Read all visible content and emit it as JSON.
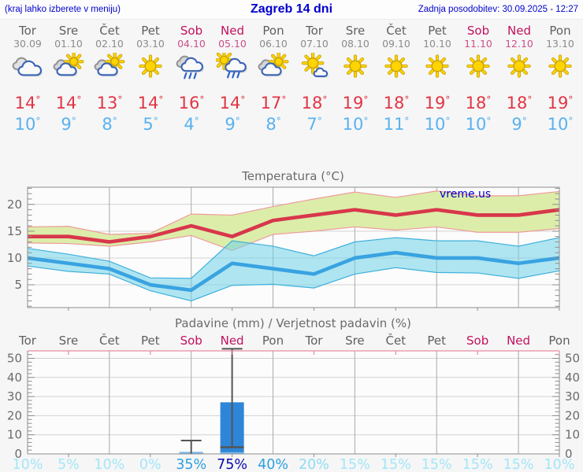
{
  "header": {
    "left_note": "(kraj lahko izberete v meniju)",
    "title": "Zagreb 14 dni",
    "last_update": "Zadnja posodobitev: 30.09.2025 - 12:27"
  },
  "degree_symbol": "°",
  "watermark": "vreme.us",
  "colors": {
    "header_blue": "#0000cc",
    "weekday_text": "#5f5f5f",
    "weekend_text": "#c2105e",
    "tmax_red": "#e13545",
    "tmin_blue": "#58b2f0",
    "plot_bg": "#fcfcfc",
    "grid_h": "#d2d2d2",
    "grid_v": "#a9a9a9",
    "border": "#8d8d8d",
    "precip_top_border": "#e88ba0",
    "axis_text": "#6b6b6b",
    "bar_blue": "#2e86d8",
    "bar_base_highlight": "#7db9ec",
    "whisker_grey": "#555555",
    "watermark_blue": "#0000cc"
  },
  "days": [
    {
      "name": "Tor",
      "date": "30.09",
      "icon": "cloudy-icon",
      "weekend": false
    },
    {
      "name": "Sre",
      "date": "01.10",
      "icon": "partly-cloudy-icon",
      "weekend": false
    },
    {
      "name": "Čet",
      "date": "02.10",
      "icon": "partly-cloudy-icon",
      "weekend": false
    },
    {
      "name": "Pet",
      "date": "03.10",
      "icon": "sunny-icon",
      "weekend": false
    },
    {
      "name": "Sob",
      "date": "04.10",
      "icon": "rain-icon",
      "weekend": true
    },
    {
      "name": "Ned",
      "date": "05.10",
      "icon": "sun-rain-icon",
      "weekend": true
    },
    {
      "name": "Pon",
      "date": "06.10",
      "icon": "partly-cloudy-icon",
      "weekend": false
    },
    {
      "name": "Tor",
      "date": "07.10",
      "icon": "mostly-sunny-icon",
      "weekend": false
    },
    {
      "name": "Sre",
      "date": "08.10",
      "icon": "sunny-icon",
      "weekend": false
    },
    {
      "name": "Čet",
      "date": "09.10",
      "icon": "sunny-icon",
      "weekend": false
    },
    {
      "name": "Pet",
      "date": "10.10",
      "icon": "sunny-icon",
      "weekend": false
    },
    {
      "name": "Sob",
      "date": "11.10",
      "icon": "sunny-icon",
      "weekend": true
    },
    {
      "name": "Ned",
      "date": "12.10",
      "icon": "sunny-icon",
      "weekend": true
    },
    {
      "name": "Pon",
      "date": "13.10",
      "icon": "sunny-icon",
      "weekend": false
    }
  ],
  "chart_data": [
    {
      "type": "line",
      "title": "Temperatura (°C)",
      "x": [
        "Tor",
        "Sre",
        "Čet",
        "Pet",
        "Sob",
        "Ned",
        "Pon",
        "Tor",
        "Sre",
        "Čet",
        "Pet",
        "Sob",
        "Ned",
        "Pon"
      ],
      "ylim": [
        0.75,
        23.2
      ],
      "yticks": [
        5,
        10,
        15,
        20
      ],
      "grid": true,
      "legend": "none",
      "series": [
        {
          "name": "max-temperature",
          "color": "#d8374b",
          "values": [
            14,
            14,
            13,
            14,
            16,
            14,
            17,
            18,
            19,
            18,
            19,
            18,
            18,
            19
          ],
          "band_upper": [
            15.8,
            15.9,
            14.4,
            14.6,
            18.2,
            18.0,
            19.6,
            21.0,
            22.3,
            21.3,
            22.5,
            21.6,
            21.6,
            22.4
          ],
          "band_lower": [
            12.8,
            12.7,
            12.2,
            13.0,
            14.2,
            11.4,
            14.4,
            15.0,
            15.8,
            15.2,
            15.8,
            14.8,
            14.8,
            15.5
          ],
          "band_fill": "#dcedaa",
          "band_opacity": 1,
          "band_edge": "#ef9a9a"
        },
        {
          "name": "min-temperature",
          "color": "#39a3e1",
          "values": [
            10,
            9,
            8,
            5,
            4,
            9,
            8,
            7,
            10,
            11,
            10,
            10,
            9,
            10
          ],
          "band_upper": [
            11.8,
            10.7,
            9.4,
            6.3,
            6.2,
            13.2,
            12.2,
            10.4,
            13.0,
            13.8,
            13.2,
            13.2,
            12.2,
            13.8
          ],
          "band_lower": [
            8.5,
            7.5,
            7.0,
            3.9,
            2.0,
            4.9,
            5.1,
            4.4,
            7.0,
            8.2,
            7.3,
            7.2,
            6.2,
            7.6
          ],
          "band_fill": "#6fd2e8",
          "band_opacity": 0.55,
          "band_edge": "#3fb0dc"
        }
      ],
      "watermark": "vreme.us"
    },
    {
      "type": "bar",
      "title": "Padavine (mm) / Verjetnost padavin (%)",
      "categories": [
        "Tor",
        "Sre",
        "Čet",
        "Pet",
        "Sob",
        "Ned",
        "Pon",
        "Tor",
        "Sre",
        "Čet",
        "Pet",
        "Sob",
        "Ned",
        "Pon"
      ],
      "values_mm": [
        0,
        0,
        0,
        0,
        1,
        27,
        0,
        0,
        0,
        0,
        0,
        0,
        0,
        0
      ],
      "whiskers": [
        null,
        null,
        null,
        null,
        {
          "low": 0,
          "high": 7
        },
        {
          "low": 3.5,
          "high": 55
        },
        null,
        null,
        null,
        null,
        null,
        null,
        null,
        null
      ],
      "probabilities_pct": [
        "10%",
        "5%",
        "10%",
        "0%",
        "35%",
        "75%",
        "40%",
        "20%",
        "15%",
        "15%",
        "15%",
        "15%",
        "15%",
        "10%"
      ],
      "prob_colors": [
        "#a3e6f8",
        "#a3e6f8",
        "#a3e6f8",
        "#a3e6f8",
        "#2f9fe1",
        "#0a0aad",
        "#2f9fe1",
        "#8fdcf4",
        "#a3e6f8",
        "#a3e6f8",
        "#a3e6f8",
        "#a3e6f8",
        "#a3e6f8",
        "#a3e6f8"
      ],
      "ylim": [
        0,
        50
      ],
      "yticks": [
        0,
        10,
        20,
        30,
        40,
        50
      ],
      "grid": true,
      "legend": "none"
    }
  ]
}
